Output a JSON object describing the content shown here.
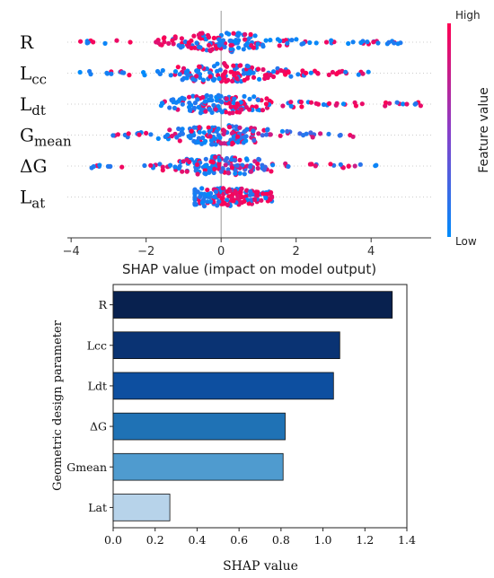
{
  "chart_data": [
    {
      "type": "scatter",
      "subtype": "shap-beeswarm",
      "features": [
        {
          "name": "R",
          "base": "R",
          "sub": ""
        },
        {
          "name": "Lcc",
          "base": "L",
          "sub": "cc"
        },
        {
          "name": "Ldt",
          "base": "L",
          "sub": "dt"
        },
        {
          "name": "Gmean",
          "base": "G",
          "sub": "mean"
        },
        {
          "name": "ΔG",
          "base": "ΔG",
          "sub": ""
        },
        {
          "name": "Lat",
          "base": "L",
          "sub": "at"
        }
      ],
      "xlabel": "SHAP value (impact on model output)",
      "xlim": [
        -4.1,
        5.6
      ],
      "xticks": [
        -4,
        -2,
        0,
        2,
        4
      ],
      "colorbar": {
        "label": "Feature value",
        "high": "High",
        "low": "Low",
        "high_color": "#ff0052",
        "low_color": "#008bfb"
      },
      "distributions": {
        "R": {
          "min": -3.75,
          "max": 4.95,
          "left_color": "red",
          "right_color": "blue"
        },
        "Lcc": {
          "min": -3.8,
          "max": 4.1,
          "left_color": "blue",
          "right_color": "red"
        },
        "Ldt": {
          "min": -1.6,
          "max": 5.45,
          "left_color": "blue",
          "right_color": "red"
        },
        "Gmean": {
          "min": -2.9,
          "max": 3.55,
          "left_color": "blue",
          "right_color": "mixed"
        },
        "ΔG": {
          "min": -3.65,
          "max": 4.25,
          "left_color": "blue",
          "right_color": "mixed"
        },
        "Lat": {
          "min": -0.7,
          "max": 1.35,
          "left_color": "blue",
          "right_color": "red"
        }
      }
    },
    {
      "type": "bar",
      "orientation": "horizontal",
      "categories": [
        "R",
        "Lcc",
        "Ldt",
        "ΔG",
        "Gmean",
        "Lat"
      ],
      "values": [
        1.33,
        1.08,
        1.05,
        0.82,
        0.81,
        0.27
      ],
      "colors": [
        "#08214f",
        "#0a3373",
        "#0d4fa0",
        "#1f72b5",
        "#4f9bcf",
        "#b7d3ea"
      ],
      "xlabel": "SHAP value",
      "ylabel": "Geometric design parameter",
      "xlim": [
        0.0,
        1.4
      ],
      "xticks": [
        "0.0",
        "0.2",
        "0.4",
        "0.6",
        "0.8",
        "1.0",
        "1.2",
        "1.4"
      ]
    }
  ]
}
